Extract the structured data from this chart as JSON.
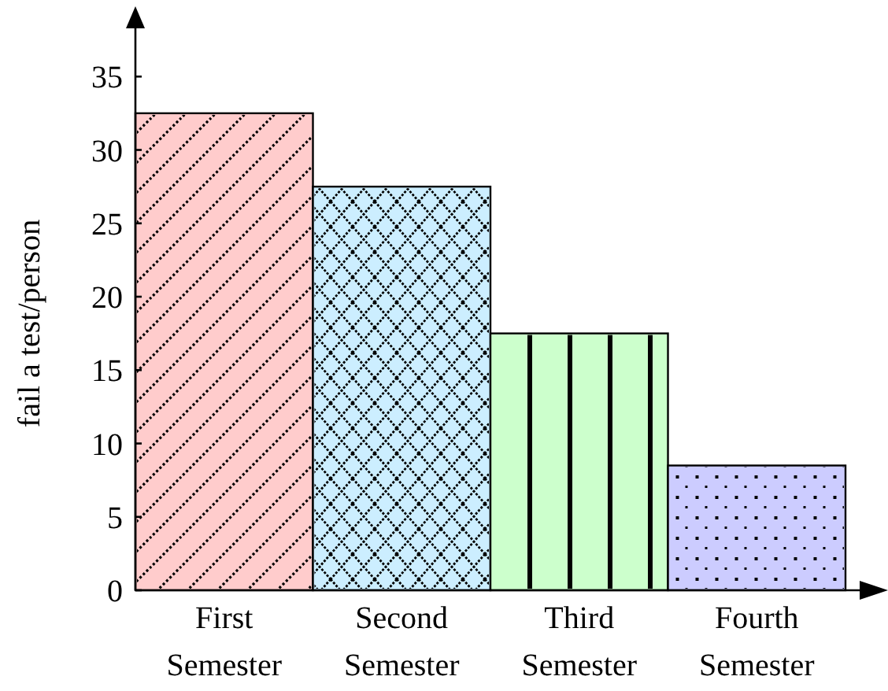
{
  "chart_data": {
    "type": "bar",
    "ylabel": "fail a test/person",
    "categories": [
      "First Semester",
      "Second Semester",
      "Third Semester",
      "Fourth Semester"
    ],
    "values": [
      32.5,
      27.5,
      17.5,
      8.5
    ],
    "colors": [
      "#ffcccc",
      "#cceeff",
      "#ccffcc",
      "#ccccff"
    ],
    "ylim": [
      0,
      38.5
    ],
    "yticks": [
      0,
      5,
      10,
      15,
      20,
      25,
      30,
      35
    ],
    "grid": false
  }
}
